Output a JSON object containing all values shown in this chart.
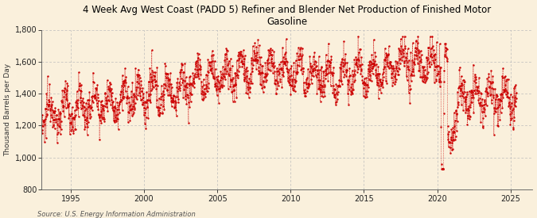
{
  "title": "4 Week Avg West Coast (PADD 5) Refiner and Blender Net Production of Finished Motor\nGasoline",
  "ylabel": "Thousand Barrels per Day",
  "source": "Source: U.S. Energy Information Administration",
  "background_color": "#FAF0DC",
  "line_color": "#CC0000",
  "ylim": [
    800,
    1800
  ],
  "yticks": [
    800,
    1000,
    1200,
    1400,
    1600,
    1800
  ],
  "xlim_start": 1993.0,
  "xlim_end": 2026.5,
  "xticks": [
    1995,
    2000,
    2005,
    2010,
    2015,
    2020,
    2025
  ],
  "grid_color": "#BBBBBB",
  "figsize": [
    6.75,
    2.75
  ],
  "dpi": 100
}
